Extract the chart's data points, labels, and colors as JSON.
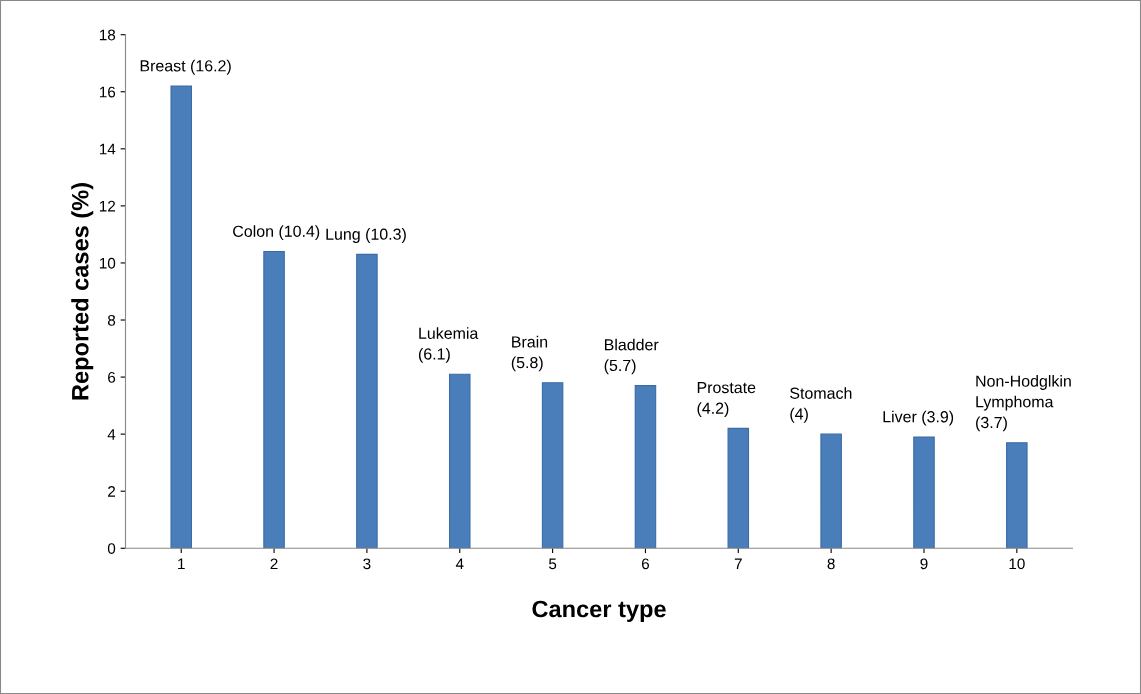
{
  "chart_data": {
    "type": "bar",
    "xlabel": "Cancer type",
    "ylabel": "Reported cases (%)",
    "categories": [
      "1",
      "2",
      "3",
      "4",
      "5",
      "6",
      "7",
      "8",
      "9",
      "10"
    ],
    "values": [
      16.2,
      10.4,
      10.3,
      6.1,
      5.8,
      5.7,
      4.2,
      4,
      3.9,
      3.7
    ],
    "value_labels": [
      "Breast (16.2)",
      "Colon (10.4)",
      "Lung (10.3)",
      "Lukemia\n(6.1)",
      "Brain\n(5.8)",
      "Bladder\n(5.7)",
      "Prostate\n(4.2)",
      "Stomach\n(4)",
      "Liver (3.9)",
      "Non-Hodglkin\nLymphoma\n(3.7)"
    ],
    "color": "#4a7ebb",
    "ylim": [
      0,
      18
    ],
    "yticks": [
      0,
      2,
      4,
      6,
      8,
      10,
      12,
      14,
      16,
      18
    ],
    "grid": false,
    "legend": false
  }
}
